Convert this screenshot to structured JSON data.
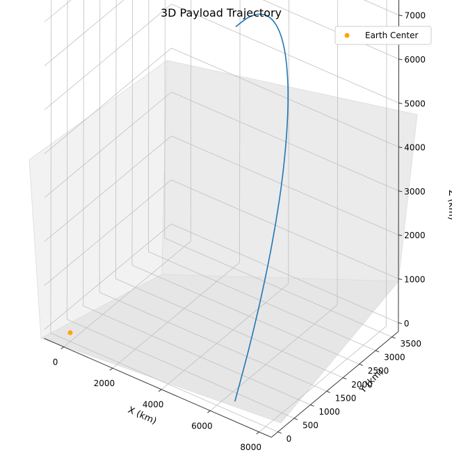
{
  "chart_data": {
    "type": "line3d",
    "title": "3D Payload Trajectory",
    "xlabel": "X (km)",
    "ylabel": "Y (km)",
    "zlabel": "Z (km)",
    "xticks": [
      "0",
      "2000",
      "4000",
      "6000",
      "8000"
    ],
    "yticks": [
      "0",
      "500",
      "1000",
      "1500",
      "2000",
      "2500",
      "3000",
      "3500"
    ],
    "zticks": [
      "0",
      "1000",
      "2000",
      "3000",
      "4000",
      "5000",
      "6000",
      "7000"
    ],
    "xlim": [
      -800,
      8500
    ],
    "ylim": [
      -200,
      3700
    ],
    "zlim": [
      -200,
      7600
    ],
    "grid": true,
    "legend_position": "top-right",
    "series": [
      {
        "color": "#1f77b4",
        "points": [
          {
            "x": 6646,
            "y": 70,
            "z": 0
          },
          {
            "x": 6785,
            "y": 389,
            "z": 1023
          },
          {
            "x": 6857,
            "y": 711,
            "z": 2021
          },
          {
            "x": 6857,
            "y": 1025,
            "z": 2965
          },
          {
            "x": 6777,
            "y": 1327,
            "z": 3827
          },
          {
            "x": 6618,
            "y": 1610,
            "z": 4599
          },
          {
            "x": 6386,
            "y": 1870,
            "z": 5261
          },
          {
            "x": 6088,
            "y": 2104,
            "z": 5799
          },
          {
            "x": 5734,
            "y": 2307,
            "z": 6203
          },
          {
            "x": 5330,
            "y": 2479,
            "z": 6468
          },
          {
            "x": 4888,
            "y": 2619,
            "z": 6596
          },
          {
            "x": 4417,
            "y": 2727,
            "z": 6592
          },
          {
            "x": 3925,
            "y": 2805,
            "z": 6464
          },
          {
            "x": 3424,
            "y": 2855,
            "z": 6225
          },
          {
            "x": 2920,
            "y": 2880,
            "z": 5890
          }
        ]
      }
    ],
    "scatter": [
      {
        "name": "Earth Center",
        "x": 0,
        "y": 0,
        "z": 0,
        "color": "#ffa500"
      }
    ]
  }
}
